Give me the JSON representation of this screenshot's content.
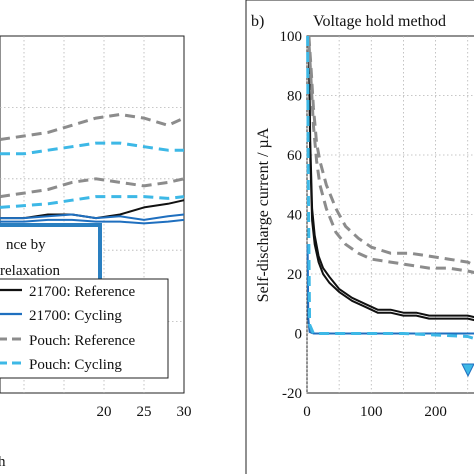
{
  "chart_data": [
    {
      "type": "line",
      "panel": "left (partial)",
      "xlabel": "h",
      "xlim": [
        7,
        30
      ],
      "ylim": [
        0,
        100
      ],
      "x_ticks": [
        20,
        25,
        30
      ],
      "grid": true,
      "annotation_lines": [
        "nce by",
        "relaxation"
      ],
      "legend": {
        "placement": "bottom-right",
        "entries": [
          "21700: Reference",
          "21700: Cycling",
          "Pouch: Reference",
          "Pouch: Cycling"
        ]
      },
      "series": [
        {
          "name": "21700: Reference",
          "color": "#111111",
          "style": "solid",
          "x": [
            7,
            10,
            13,
            16,
            19,
            22,
            25,
            28,
            30
          ],
          "y": [
            49,
            49,
            50,
            50,
            49,
            50,
            52,
            53,
            54
          ]
        },
        {
          "name": "21700: Cycling",
          "color": "#1f6fbf",
          "style": "solid",
          "x": [
            7,
            10,
            13,
            16,
            19,
            22,
            25,
            28,
            30
          ],
          "y": [
            49,
            49,
            49.5,
            50,
            49,
            49.5,
            48.5,
            49.5,
            50
          ]
        },
        {
          "name": "21700: Cycling",
          "color": "#1f6fbf",
          "style": "solid",
          "x": [
            7,
            10,
            13,
            16,
            19,
            22,
            25,
            28,
            30
          ],
          "y": [
            48,
            48,
            48.5,
            48.5,
            48,
            48,
            47.5,
            48,
            48.5
          ]
        },
        {
          "name": "Pouch: Reference",
          "color": "#8c8c8c",
          "style": "dashed",
          "x": [
            7,
            10,
            13,
            16,
            19,
            22,
            25,
            28,
            30
          ],
          "y": [
            71,
            72,
            73,
            75,
            77,
            78,
            77,
            75,
            77
          ]
        },
        {
          "name": "Pouch: Reference",
          "color": "#8c8c8c",
          "style": "dashed",
          "x": [
            7,
            10,
            13,
            16,
            19,
            22,
            25,
            28,
            30
          ],
          "y": [
            55,
            56,
            57,
            59,
            60,
            59,
            58,
            59,
            60
          ]
        },
        {
          "name": "Pouch: Cycling",
          "color": "#3db8e6",
          "style": "dashed",
          "x": [
            7,
            10,
            13,
            16,
            19,
            22,
            25,
            28,
            30
          ],
          "y": [
            67,
            67,
            68,
            69,
            70,
            70,
            69,
            68,
            68
          ]
        },
        {
          "name": "Pouch: Cycling",
          "color": "#3db8e6",
          "style": "dashed",
          "x": [
            7,
            10,
            13,
            16,
            19,
            22,
            25,
            28,
            30
          ],
          "y": [
            52,
            52.5,
            53,
            54,
            55,
            55,
            55,
            54.5,
            55
          ]
        }
      ]
    },
    {
      "type": "line",
      "panel_label": "b)",
      "title": "Voltage hold method",
      "ylabel": "Self-discharge current / µA",
      "xlim": [
        0,
        280
      ],
      "ylim": [
        -20,
        100
      ],
      "x_ticks": [
        0,
        100,
        200
      ],
      "y_ticks": [
        -20,
        0,
        20,
        40,
        60,
        80,
        100
      ],
      "grid": true,
      "series": [
        {
          "name": "21700: Reference",
          "color": "#111111",
          "style": "solid",
          "x": [
            3,
            5,
            8,
            12,
            18,
            25,
            35,
            50,
            70,
            90,
            110,
            130,
            150,
            170,
            190,
            210,
            230,
            250,
            270,
            280
          ],
          "y": [
            100,
            65,
            42,
            33,
            26,
            22,
            19,
            15,
            12,
            10,
            8,
            8,
            7,
            7,
            6,
            6,
            6,
            6,
            5,
            5
          ]
        },
        {
          "name": "21700: Reference",
          "color": "#111111",
          "style": "solid",
          "x": [
            3,
            5,
            8,
            12,
            18,
            25,
            35,
            50,
            70,
            90,
            110,
            130,
            150,
            170,
            190,
            210,
            230,
            250,
            270,
            280
          ],
          "y": [
            95,
            60,
            38,
            30,
            24,
            20,
            17,
            14,
            11,
            9,
            7,
            7,
            6,
            6,
            5,
            5,
            5,
            5,
            4,
            4
          ]
        },
        {
          "name": "Pouch: Reference",
          "color": "#8c8c8c",
          "style": "dashed",
          "x": [
            3,
            6,
            10,
            15,
            20,
            30,
            45,
            60,
            80,
            100,
            130,
            160,
            190,
            220,
            250,
            270,
            280
          ],
          "y": [
            100,
            90,
            76,
            64,
            58,
            50,
            42,
            36,
            32,
            29,
            27,
            27,
            26,
            25,
            24,
            22,
            20
          ]
        },
        {
          "name": "Pouch: Reference",
          "color": "#8c8c8c",
          "style": "dashed",
          "x": [
            3,
            6,
            10,
            15,
            20,
            30,
            45,
            60,
            80,
            100,
            130,
            160,
            190,
            220,
            250,
            270,
            280
          ],
          "y": [
            98,
            86,
            70,
            58,
            50,
            42,
            34,
            30,
            27,
            25,
            24,
            23,
            22,
            22,
            21,
            20,
            18
          ]
        },
        {
          "name": "21700: Cycling",
          "color": "#1f6fbf",
          "style": "solid",
          "x": [
            1,
            2,
            4,
            10,
            50,
            100,
            150,
            200,
            250,
            280
          ],
          "y": [
            30,
            5,
            0.5,
            0,
            0,
            0,
            0,
            0,
            0,
            0
          ]
        },
        {
          "name": "Pouch: Cycling",
          "color": "#3db8e6",
          "style": "dashed",
          "x": [
            1,
            2,
            4,
            10,
            50,
            100,
            150,
            200,
            250,
            280
          ],
          "y": [
            100,
            50,
            3,
            0,
            0,
            0,
            0,
            -0.5,
            -1,
            -3
          ]
        }
      ]
    }
  ]
}
